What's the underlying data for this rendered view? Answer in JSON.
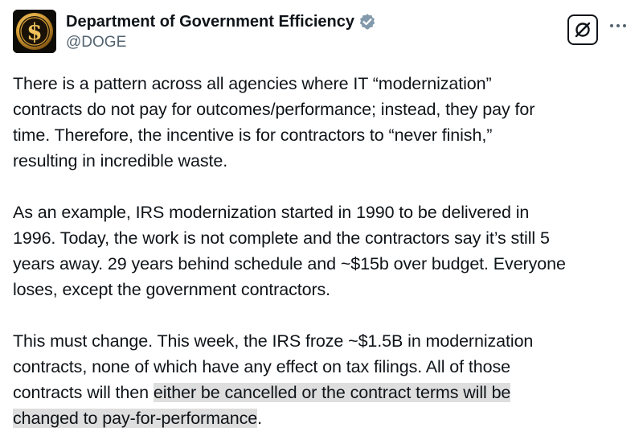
{
  "author": {
    "display_name": "Department of Government Efficiency",
    "handle": "@DOGE",
    "avatar_icon": "gold-dollar-coin-icon",
    "verified_icon": "verified-badge-icon",
    "accent_color": "#829aab",
    "avatar_gold": "#d9a23a"
  },
  "actions": {
    "grok_icon": "grok-icon",
    "more_icon": "more-options-icon"
  },
  "post": {
    "paragraph_1": "There is a pattern across all agencies where IT “modernization”\ncontracts do not pay for outcomes/performance; instead, they pay for\ntime.  Therefore, the incentive is for contractors to “never finish,”\nresulting in incredible waste.",
    "paragraph_2": "As an example, IRS modernization started in 1990 to be delivered in\n1996.  Today, the work is not complete and the contractors say it’s still 5\nyears away.  29 years behind schedule and ~$15b over budget.  Everyone\nloses, except the government contractors.",
    "paragraph_3_plain": "This must change.  This week, the IRS froze ~$1.5B in modernization\ncontracts, none of which have any effect on tax filings. All of those\ncontracts will then ",
    "paragraph_3_highlighted": "either be cancelled or the contract terms will be\nchanged to pay-for-performance",
    "paragraph_3_end": ".",
    "highlight_color": "#dedede"
  }
}
